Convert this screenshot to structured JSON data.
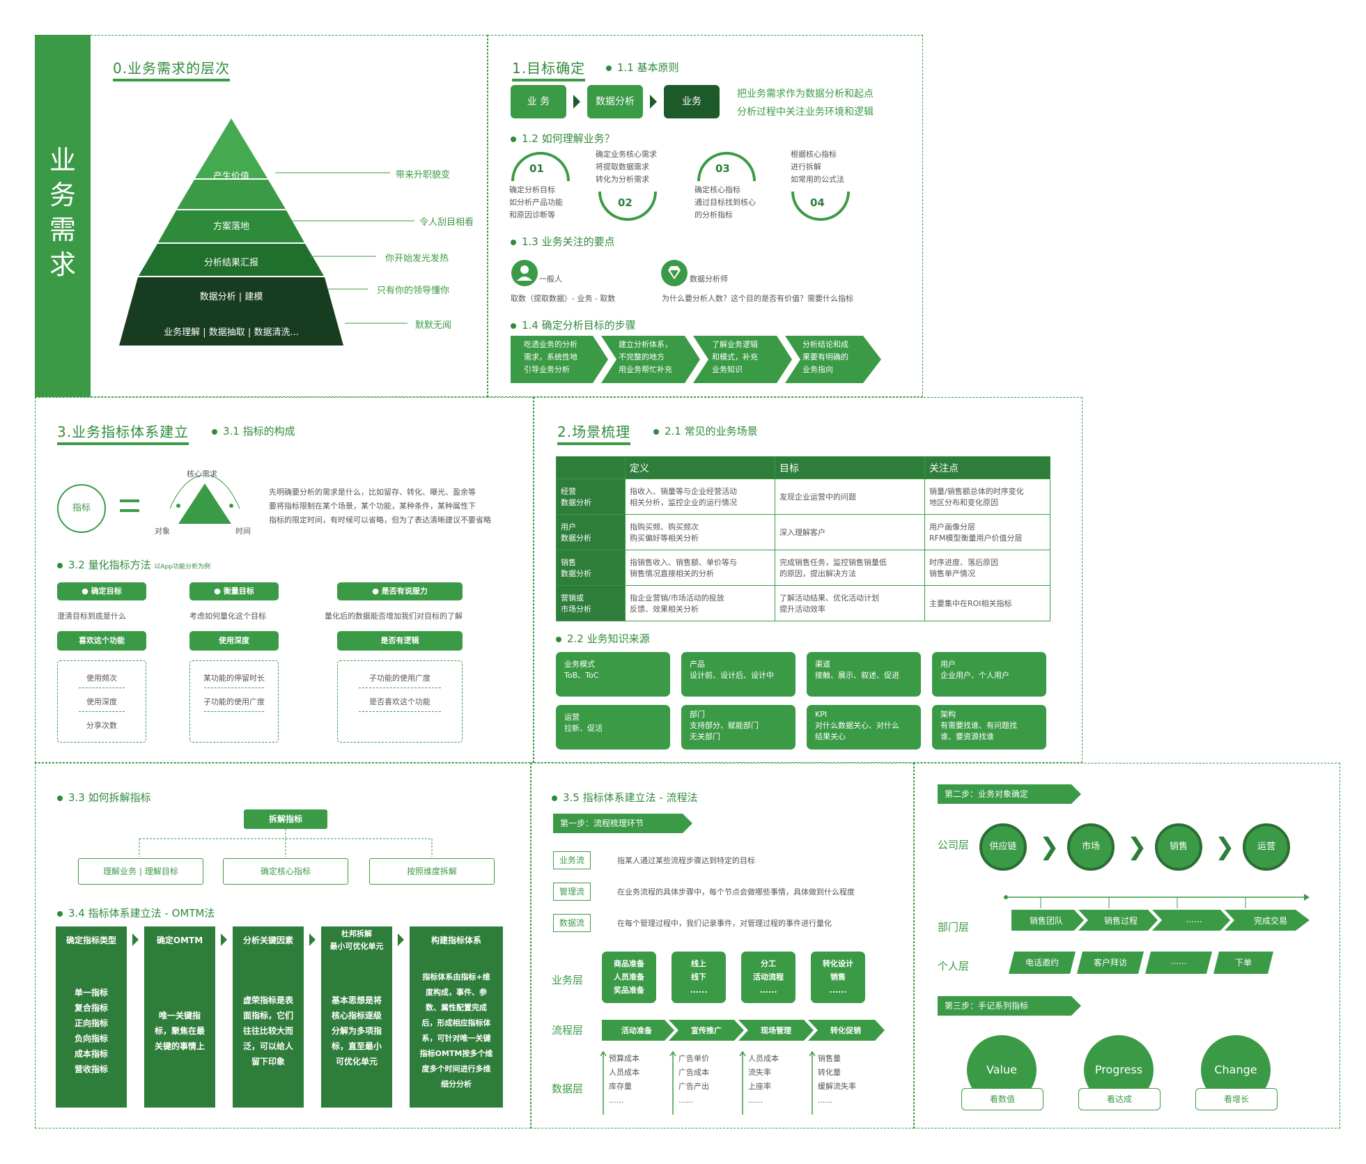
{
  "side": {
    "title": "业务需求"
  },
  "s0": {
    "title": "0.业务需求的层次",
    "pyramid": [
      "产生价值",
      "方案落地",
      "分析结果汇报",
      "数据分析 | 建模",
      "业务理解 | 数据抽取 | 数据清洗..."
    ],
    "labels": [
      "带来升职貌变",
      "令人刮目相看",
      "你开始发光发热",
      "只有你的领导懂你",
      "默默无闻"
    ]
  },
  "s1": {
    "title": "1.目标确定",
    "p11": "1.1 基本原则",
    "flow": [
      "业 务",
      "数据分析",
      "业务"
    ],
    "principle1": "把业务需求作为数据分析和起点",
    "principle2": "分析过程中关注业务环境和逻辑",
    "p12": "1.2 如何理解业务？",
    "steps": [
      {
        "num": "01",
        "text": [
          "确定分析目标",
          "如分析产品功能",
          "和原因诊断等"
        ]
      },
      {
        "num": "02",
        "text": [
          "确定业务核心需求",
          "将提取数据需求",
          "转化为分析需求"
        ]
      },
      {
        "num": "03",
        "text": [
          "确定核心指标",
          "通过目标找到核心",
          "的分析指标"
        ]
      },
      {
        "num": "04",
        "text": [
          "根据核心指标",
          "进行拆解",
          "如常用的公式法"
        ]
      }
    ],
    "p13": "1.3 业务关注的要点",
    "ordinary": "一般人",
    "ordinary_desc": "取数（提取数据）- 业务 - 取数",
    "analyst": "数据分析师",
    "analyst_desc": "为什么要分析人数？这个目的是否有价值？需要什么指标",
    "p14": "1.4 确定分析目标的步骤",
    "chevrons": [
      [
        "吃透业务的分析",
        "需求，系统性地",
        "引导业务分析"
      ],
      [
        "建立分析体系，",
        "不完整的地方",
        "用业务帮忙补充"
      ],
      [
        "了解业务逻辑",
        "和模式，补充",
        "业务知识"
      ],
      [
        "分析结论和成",
        "果要有明确的",
        "业务指向"
      ]
    ]
  },
  "s3": {
    "title": "3.业务指标体系建立",
    "p31": "3.1 指标的构成",
    "indicator": "指标",
    "core": "核心需求",
    "object": "对象",
    "time": "时间",
    "desc": [
      "先明确要分析的需求是什么，比如留存、转化、曝光、盈余等",
      "要将指标限制在某个场景，某个功能，某种条件，某种属性下",
      "指标的限定时间，有时候可以省略，但为了表达清晰建议不要省略"
    ],
    "p32": "3.2 量化指标方法",
    "p32_note": "以App功能分析为例",
    "cols": [
      {
        "head": "确定目标",
        "desc": "澄清目标到底是什么",
        "sub": "喜欢这个功能",
        "items": [
          "使用频次",
          "使用深度",
          "分享次数"
        ]
      },
      {
        "head": "衡量目标",
        "desc": "考虑如何量化这个目标",
        "sub": "使用深度",
        "items": [
          "某功能的停留时长",
          "子功能的使用广度"
        ]
      },
      {
        "head": "是否有说服力",
        "desc": "量化后的数据能否增加我们对目标的了解",
        "sub": "是否有逻辑",
        "items": [
          "子功能的使用广度",
          "是否喜欢这个功能"
        ]
      }
    ]
  },
  "s2": {
    "title": "2.场景梳理",
    "p21": "2.1 常见的业务场景",
    "headers": [
      "",
      "定义",
      "目标",
      "关注点"
    ],
    "rows": [
      [
        "经营\n数据分析",
        "指收入、销量等与企业经营活动\n相关分析，监控企业的运行情况",
        "发现企业运营中的问题",
        "销量/销售额总体的时序变化\n地区分布和变化原因"
      ],
      [
        "用户\n数据分析",
        "指购买频、购买频次\n购买偏好等相关分析",
        "深入理解客户",
        "用户画像分层\nRFM模型衡量用户价值分层"
      ],
      [
        "销售\n数据分析",
        "指销售收入、销售额、单价等与\n销售情况直接相关的分析",
        "完成销售任务，监控销售销量低\n的原因，提出解决方法",
        "时序进度、落后原因\n销售单产情况"
      ],
      [
        "营销或\n市场分析",
        "指企业营销/市场活动的投放\n反馈、效果相关分析",
        "了解活动结果、优化活动计划\n提升活动效率",
        "主要集中在ROI相关指标"
      ]
    ],
    "p22": "2.2 业务知识来源",
    "cards": [
      [
        "业务模式",
        "ToB、ToC"
      ],
      [
        "产品",
        "设计前、设计后、设计中"
      ],
      [
        "渠道",
        "接触、展示、叙述、促进"
      ],
      [
        "用户",
        "企业用户、个人用户"
      ],
      [
        "运营",
        "拉新、促活"
      ],
      [
        "部门",
        "支持部分、赋能部门\n无关部门"
      ],
      [
        "KPI",
        "对什么数据关心、对什么\n结果关心"
      ],
      [
        "架构",
        "有需要找谁、有问题找\n谁、要资源找谁"
      ]
    ]
  },
  "s33": {
    "p33": "3.3 如何拆解指标",
    "root": "拆解指标",
    "children": [
      "理解业务 | 理解目标",
      "确定核心指标",
      "按照维度拆解"
    ],
    "p34": "3.4 指标体系建立法 - OMTM法",
    "cols": [
      {
        "head": "确定指标类型",
        "body": [
          "单一指标",
          "复合指标",
          "正向指标",
          "负向指标",
          "成本指标",
          "营收指标"
        ]
      },
      {
        "head": "确定OMTM",
        "body": [
          "唯一关键指",
          "标，聚焦在最",
          "关键的事情上"
        ]
      },
      {
        "head": "分析关键因素",
        "body": [
          "虚荣指标是表",
          "面指标，它们",
          "往往比较大而",
          "泛，可以给人",
          "留下印象"
        ]
      },
      {
        "head": "杜邦拆解\n最小可优化单元",
        "body": [
          "基本思想是将",
          "核心指标逐级",
          "分解为多项指",
          "标，直至最小",
          "可优化单元"
        ]
      },
      {
        "head": "构建指标体系",
        "body": [
          "指标体系由指标+维",
          "度构成，事件、参",
          "数、属性配置完成",
          "后，形成相应指标体",
          "系，可针对唯一关键",
          "指标OMTM按多个维",
          "度多个时间进行多维",
          "细分分析"
        ]
      }
    ]
  },
  "s35": {
    "p35": "3.5 指标体系建立法 - 流程法",
    "step1": "第一步：流程梳理环节",
    "flows": [
      [
        "业务流",
        "指某人通过某些流程步骤达到特定的目标"
      ],
      [
        "管理流",
        "在业务流程的具体步骤中，每个节点会做哪些事情，具体做到什么程度"
      ],
      [
        "数据流",
        "在每个管理过程中，我们记录事件，对管理过程的事件进行量化"
      ]
    ],
    "layer_biz": "业务层",
    "biz_boxes": [
      [
        "商品准备",
        "人员准备",
        "奖品准备"
      ],
      [
        "线上",
        "线下",
        "......"
      ],
      [
        "分工",
        "活动流程",
        "......"
      ],
      [
        "转化设计",
        "销售",
        "......"
      ]
    ],
    "layer_flow": "流程层",
    "flow_arrows": [
      "活动准备",
      "宣传推广",
      "现场管理",
      "转化促销"
    ],
    "layer_data": "数据层",
    "data_cols": [
      [
        "预算成本",
        "人员成本",
        "库存量",
        "......"
      ],
      [
        "广告单价",
        "广告成本",
        "广告产出",
        "......"
      ],
      [
        "人员成本",
        "流失率",
        "上座率",
        "......"
      ],
      [
        "销售量",
        "转化量",
        "缓解流失率",
        "......"
      ]
    ]
  },
  "s4": {
    "step2": "第二步：业务对象确定",
    "company": "公司层",
    "company_nodes": [
      "供应链",
      "市场",
      "销售",
      "运营"
    ],
    "dept": "部门层",
    "dept_nodes": [
      "销售团队",
      "销售过程",
      "......",
      "完成交易"
    ],
    "person": "个人层",
    "person_nodes": [
      "电话邀约",
      "客户拜访",
      "......",
      "下单"
    ],
    "step3": "第三步：手记系列指标",
    "big": [
      [
        "Value",
        "看数值"
      ],
      [
        "Progress",
        "看达成"
      ],
      [
        "Change",
        "看增长"
      ]
    ]
  }
}
